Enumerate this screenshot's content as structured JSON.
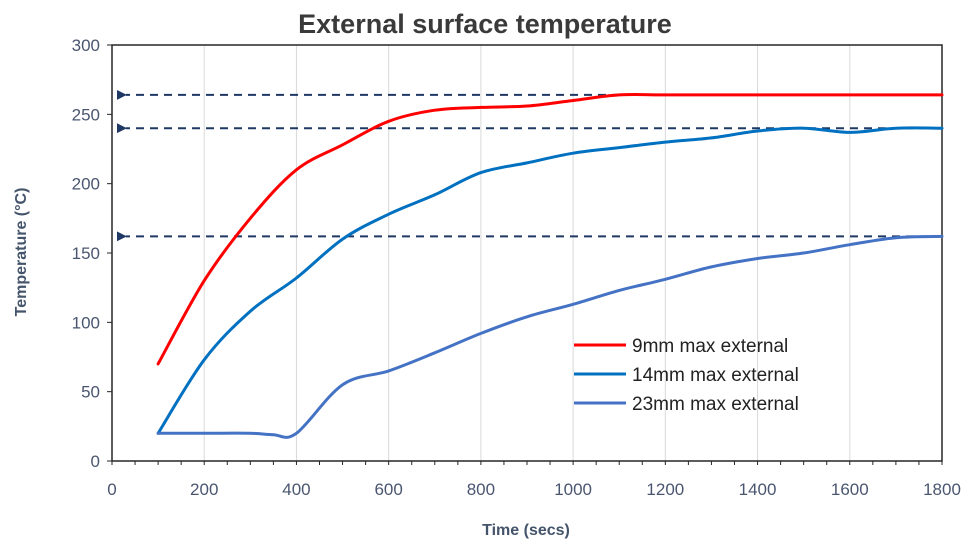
{
  "chart_data": {
    "type": "line",
    "title": "External surface temperature",
    "xlabel": "Time (secs)",
    "ylabel": "Temperature (°C)",
    "xlim": [
      0,
      1800
    ],
    "ylim": [
      0,
      300
    ],
    "xticks": [
      "0",
      "200",
      "400",
      "600",
      "800",
      "1000",
      "1200",
      "1400",
      "1600",
      "1800"
    ],
    "yticks": [
      "0",
      "50",
      "100",
      "150",
      "200",
      "250",
      "300"
    ],
    "grid": "vertical",
    "legend_position": "bottom-right",
    "series": [
      {
        "name": "9mm max external",
        "color": "#ff0000",
        "x": [
          100,
          200,
          300,
          400,
          500,
          600,
          700,
          800,
          900,
          1000,
          1100,
          1200,
          1300,
          1400,
          1500,
          1600,
          1700,
          1800
        ],
        "y": [
          70,
          130,
          175,
          210,
          228,
          245,
          253,
          255,
          256,
          260,
          264,
          264,
          264,
          264,
          264,
          264,
          264,
          264
        ]
      },
      {
        "name": "14mm max external",
        "color": "#0070c0",
        "x": [
          100,
          200,
          300,
          400,
          500,
          600,
          700,
          800,
          900,
          1000,
          1100,
          1200,
          1300,
          1400,
          1500,
          1600,
          1700,
          1800
        ],
        "y": [
          20,
          73,
          108,
          132,
          160,
          178,
          192,
          208,
          215,
          222,
          226,
          230,
          233,
          238,
          240,
          237,
          240,
          240
        ]
      },
      {
        "name": "23mm max external",
        "color": "#4472c4",
        "x": [
          100,
          200,
          300,
          350,
          400,
          500,
          600,
          700,
          800,
          900,
          1000,
          1100,
          1200,
          1300,
          1400,
          1500,
          1600,
          1700,
          1800
        ],
        "y": [
          20,
          20,
          20,
          19,
          20,
          55,
          65,
          78,
          92,
          104,
          113,
          123,
          131,
          140,
          146,
          150,
          156,
          161,
          162
        ]
      }
    ],
    "reference_arrows": [
      {
        "y": 264,
        "color": "#1f3864"
      },
      {
        "y": 240,
        "color": "#1f3864"
      },
      {
        "y": 162,
        "color": "#1f3864"
      }
    ]
  }
}
